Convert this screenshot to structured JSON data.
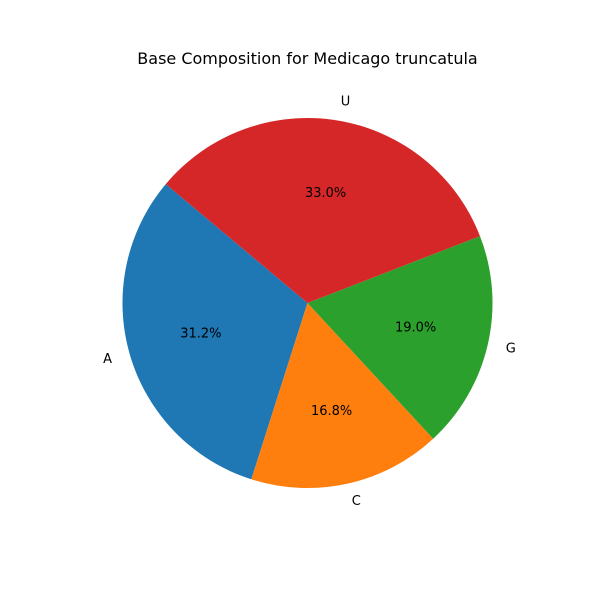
{
  "chart_data": {
    "type": "pie",
    "title": "Base Composition for Medicago truncatula",
    "categories": [
      "A",
      "C",
      "G",
      "U"
    ],
    "values": [
      31.2,
      16.8,
      19.0,
      33.0
    ],
    "value_labels": [
      "31.2%",
      "16.8%",
      "19.0%",
      "33.0%"
    ],
    "colors": [
      "#1f77b4",
      "#ff7f0e",
      "#2ca02c",
      "#d62728"
    ],
    "start_angle_deg": 140,
    "direction": "counterclockwise",
    "legend": "none"
  }
}
